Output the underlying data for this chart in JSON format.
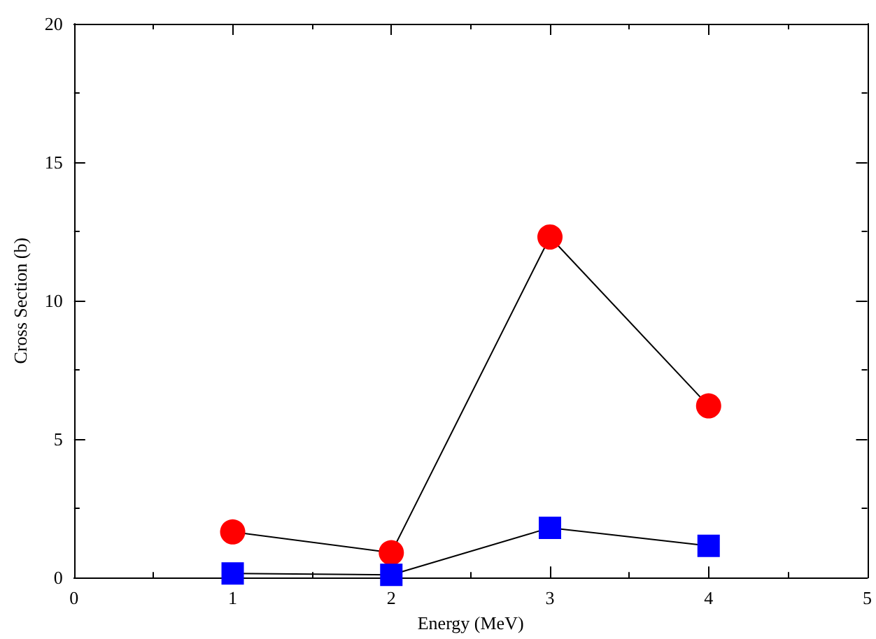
{
  "chart_data": {
    "type": "line",
    "xlabel": "Energy (MeV)",
    "ylabel": "Cross Section (b)",
    "x": [
      1,
      2,
      3,
      4
    ],
    "series": [
      {
        "color": "#ff0000",
        "marker": "circle",
        "values": [
          1.65,
          0.9,
          12.3,
          6.2
        ]
      },
      {
        "color": "#0000ff",
        "marker": "square",
        "values": [
          0.15,
          0.1,
          1.8,
          1.15
        ]
      }
    ],
    "xlim": [
      0,
      5
    ],
    "xticks": [
      0,
      1,
      2,
      3,
      4,
      5
    ],
    "ylim": [
      0,
      20
    ],
    "yticks": [
      0,
      5,
      10,
      15,
      20
    ],
    "grid": false
  }
}
